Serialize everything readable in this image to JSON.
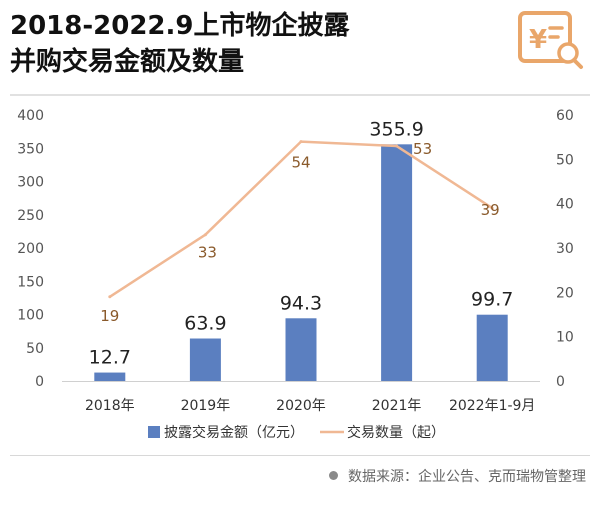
{
  "title_line1": "2018-2022.9上市物企披露",
  "title_line2": "并购交易金额及数量",
  "source": "数据来源：企业公告、克而瑞物管整理",
  "logo_icon": "receipt-yen-search-icon",
  "colors": {
    "bar": "#5b7fc0",
    "line": "#f0b894",
    "line_label": "#8a5a2b",
    "axis_text": "#555555",
    "accent": "#e9a66a"
  },
  "chart_data": {
    "type": "bar+line",
    "categories": [
      "2018年",
      "2019年",
      "2020年",
      "2021年",
      "2022年1-9月"
    ],
    "series": [
      {
        "name": "披露交易金额（亿元）",
        "type": "bar",
        "axis": "left",
        "values": [
          12.7,
          63.9,
          94.3,
          355.9,
          99.7
        ]
      },
      {
        "name": "交易数量（起）",
        "type": "line",
        "axis": "right",
        "values": [
          19,
          33,
          54,
          53,
          39
        ]
      }
    ],
    "y_left": {
      "min": 0,
      "max": 400,
      "ticks": [
        0,
        50,
        100,
        150,
        200,
        250,
        300,
        350,
        400
      ]
    },
    "y_right": {
      "min": 0,
      "max": 60,
      "ticks": [
        0,
        10,
        20,
        30,
        40,
        50,
        60
      ]
    },
    "bar_labels": [
      "12.7",
      "63.9",
      "94.3",
      "355.9",
      "99.7"
    ],
    "line_labels": [
      "19",
      "33",
      "54",
      "53",
      "39"
    ],
    "legend_position": "bottom",
    "grid": false
  }
}
